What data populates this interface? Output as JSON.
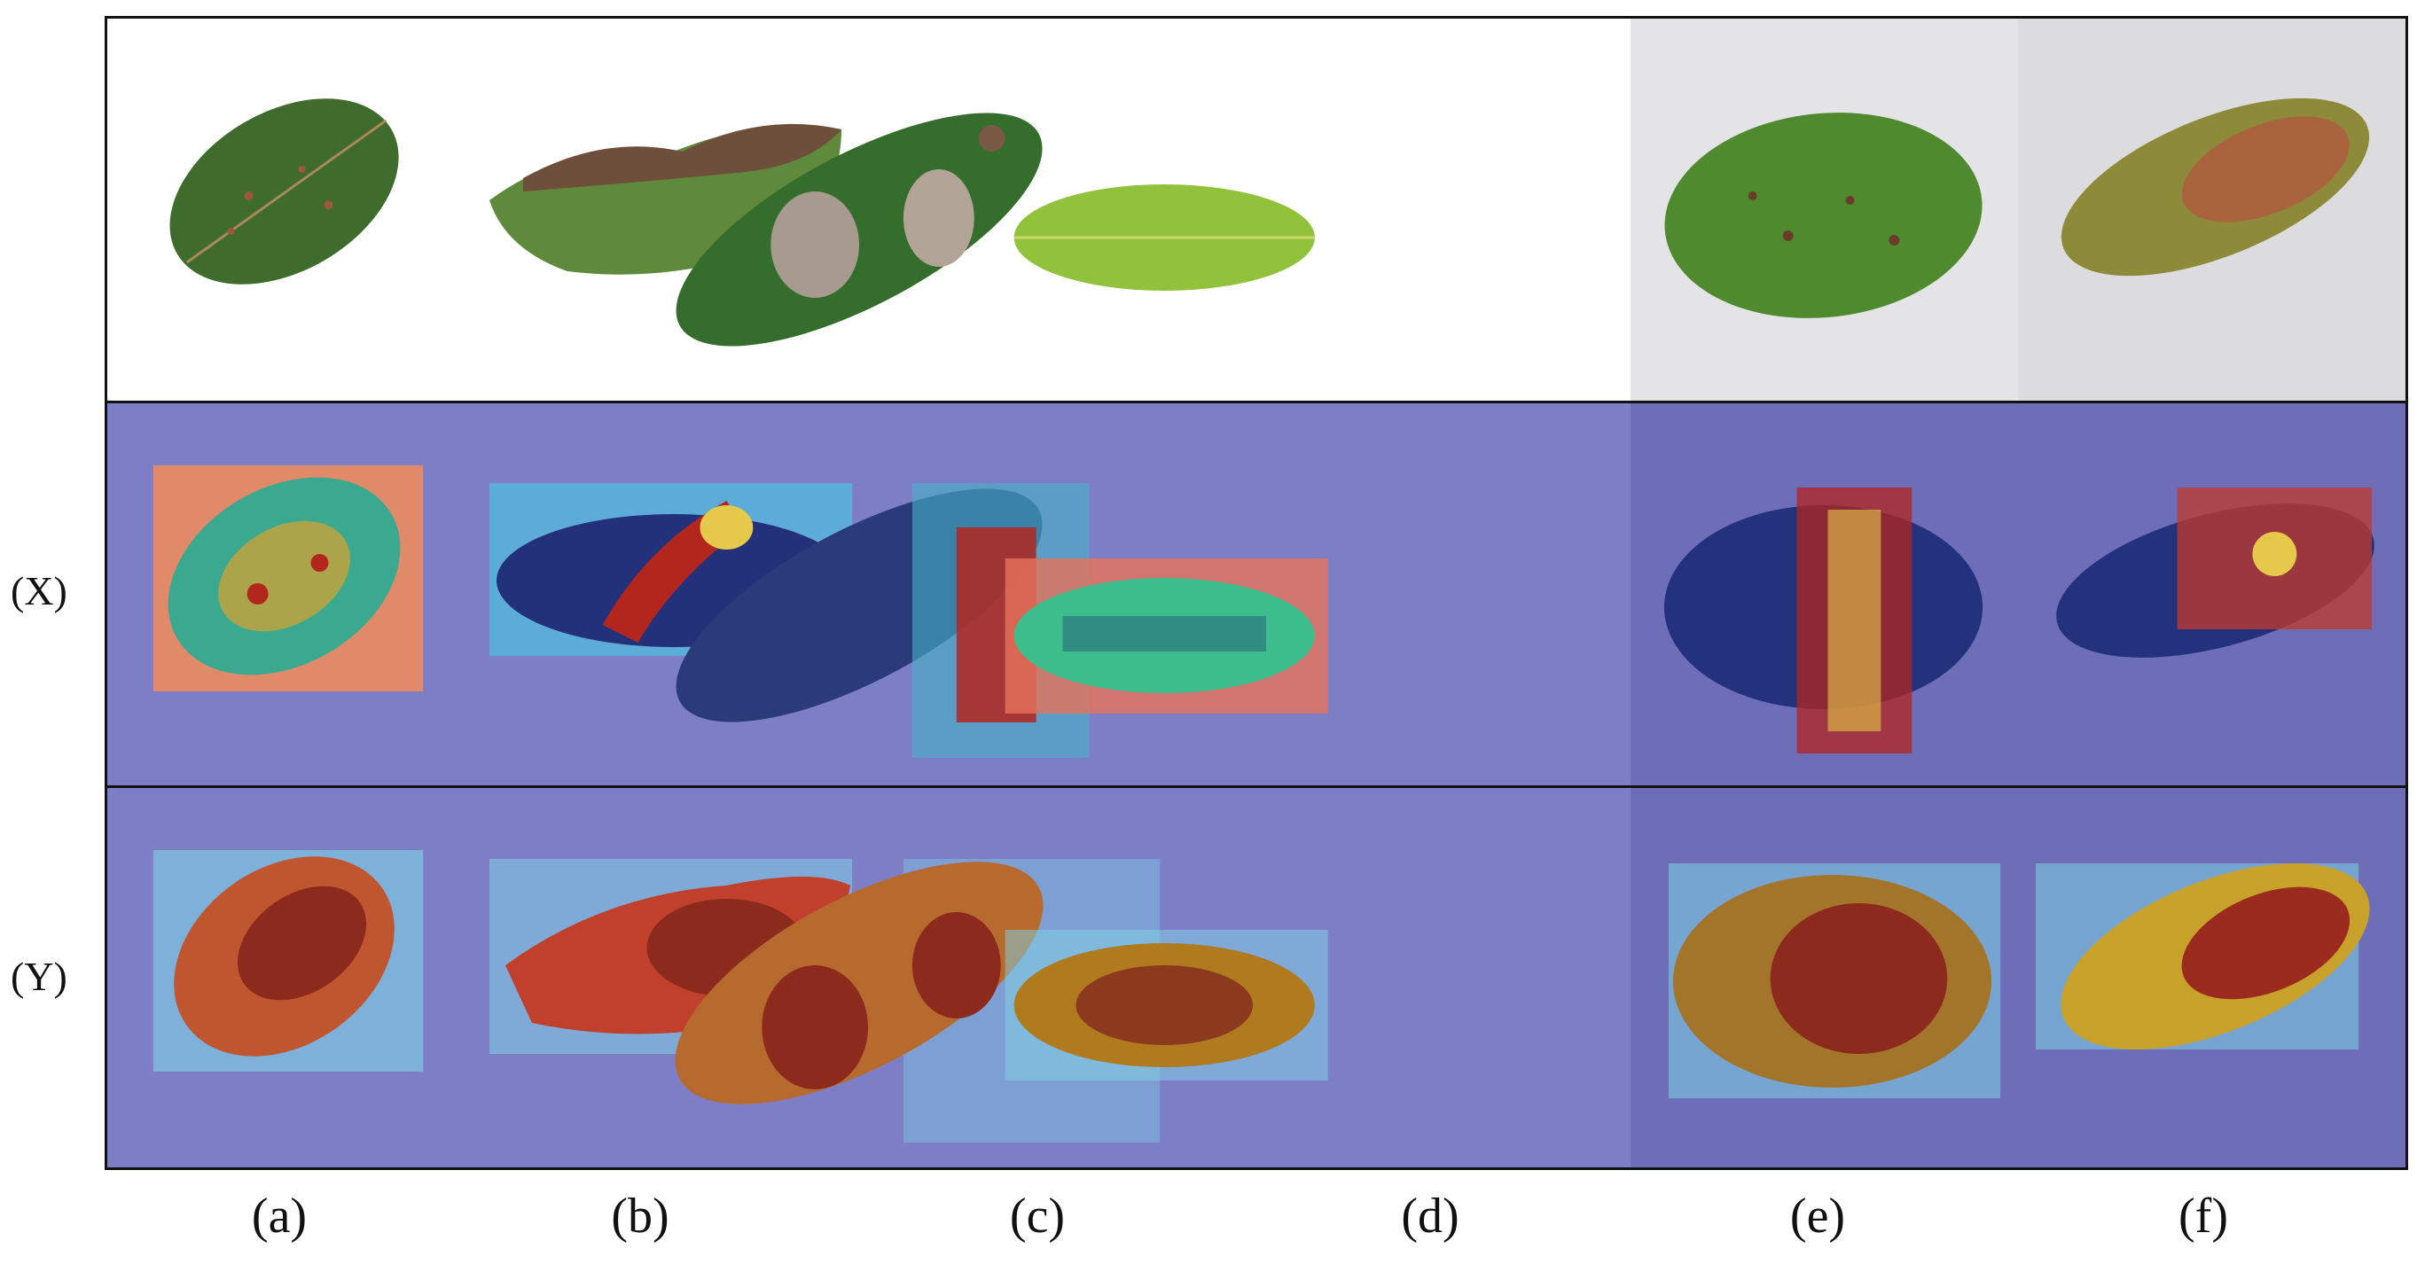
{
  "rows": {
    "x_label": "(X)",
    "y_label": "(Y)"
  },
  "columns": [
    "(a)",
    "(b)",
    "(c)",
    "(d)",
    "(e)",
    "(f)"
  ],
  "colors": {
    "overlay_background": "#7e7ec6",
    "overlay_background_dark": "#6c6cb7",
    "photo_background_light": "#ffffff",
    "photo_background_grey": "#e3e3e6",
    "leaf_green": "#3f7a2e",
    "leaf_yellow_green": "#8fc23a",
    "lesion_brown": "#7a5a45",
    "heat_red": "#b3261e",
    "heat_yellow": "#e6c84a",
    "heat_cyan": "#3cc9d6",
    "heat_blue": "#2c3fa8"
  }
}
